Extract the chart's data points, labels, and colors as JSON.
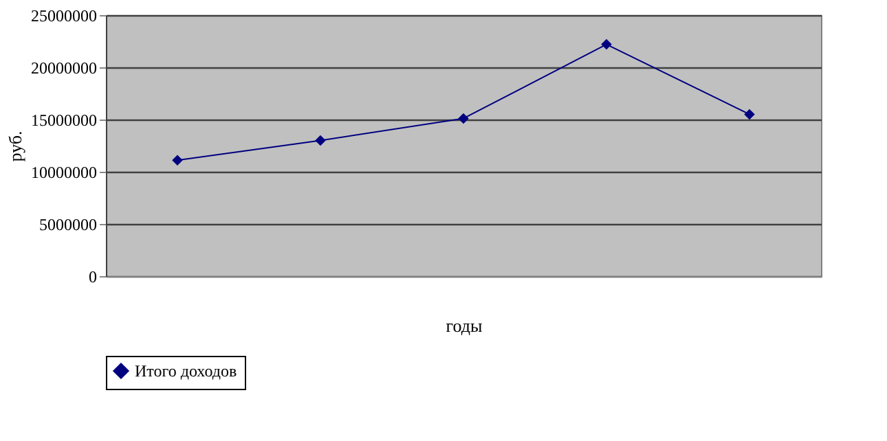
{
  "chart_data": {
    "type": "line",
    "xlabel": "годы",
    "ylabel": "руб.",
    "categories": [
      null,
      null,
      null,
      null,
      null
    ],
    "series": [
      {
        "name": "Итого доходов",
        "color": "#000080",
        "values": [
          11100000,
          13000000,
          15100000,
          22200000,
          15500000
        ]
      }
    ],
    "ylim": [
      0,
      25000000
    ],
    "yticks": [
      0,
      5000000,
      10000000,
      15000000,
      20000000,
      25000000
    ],
    "grid": "y",
    "legend": "bottom",
    "marker": "diamond",
    "line_style": "solid",
    "tick_labels": "y"
  }
}
